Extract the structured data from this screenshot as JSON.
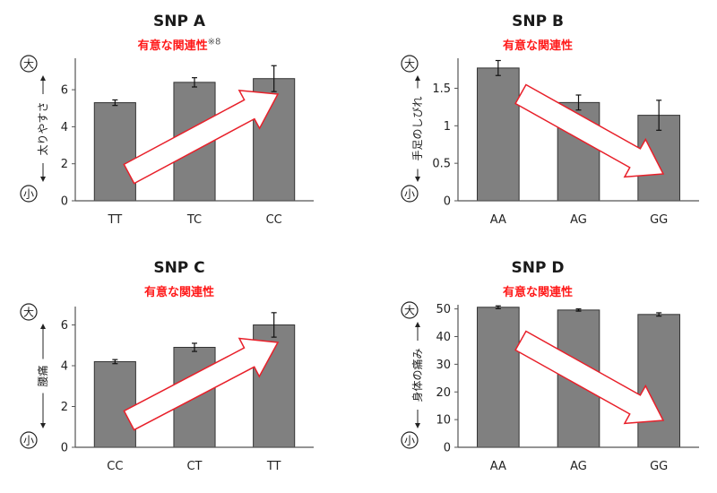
{
  "chart_data": [
    {
      "type": "bar",
      "title": "SNP A",
      "subtitle": "有意な関連性",
      "note": "※8",
      "ylabel": "太りやすさ",
      "y_top": "大",
      "y_bottom": "小",
      "categories": [
        "TT",
        "TC",
        "CC"
      ],
      "values": [
        5.3,
        6.4,
        6.6
      ],
      "errors": [
        0.15,
        0.25,
        0.7
      ],
      "yticks": [
        0,
        2,
        4,
        6
      ],
      "ylim": [
        0,
        7.7
      ],
      "trend": "up",
      "grid": false
    },
    {
      "type": "bar",
      "title": "SNP B",
      "subtitle": "有意な関連性",
      "ylabel": "手足のしびれ",
      "y_top": "大",
      "y_bottom": "小",
      "categories": [
        "AA",
        "AG",
        "GG"
      ],
      "values": [
        1.77,
        1.31,
        1.14
      ],
      "errors": [
        0.1,
        0.1,
        0.2
      ],
      "yticks": [
        0,
        0.5,
        1,
        1.5
      ],
      "ytick_labels": [
        "0",
        "0.5",
        "1",
        "1.5"
      ],
      "ylim": [
        0,
        1.9
      ],
      "trend": "down",
      "grid": false
    },
    {
      "type": "bar",
      "title": "SNP C",
      "subtitle": "有意な関連性",
      "ylabel": "腰痛",
      "y_top": "大",
      "y_bottom": "小",
      "categories": [
        "CC",
        "CT",
        "TT"
      ],
      "values": [
        4.2,
        4.9,
        6.0
      ],
      "errors": [
        0.1,
        0.2,
        0.6
      ],
      "yticks": [
        0,
        2,
        4,
        6
      ],
      "ylim": [
        0,
        6.9
      ],
      "trend": "up",
      "grid": false
    },
    {
      "type": "bar",
      "title": "SNP D",
      "subtitle": "有意な関連性",
      "ylabel": "身体の痛み",
      "y_top": "大",
      "y_bottom": "小",
      "categories": [
        "AA",
        "AG",
        "GG"
      ],
      "values": [
        50.6,
        49.6,
        48.0
      ],
      "errors": [
        0.5,
        0.4,
        0.6
      ],
      "yticks": [
        0,
        10,
        20,
        30,
        40,
        50
      ],
      "ylim": [
        0,
        51.5
      ],
      "trend": "down",
      "grid": false
    }
  ],
  "colors": {
    "bar": "#808080",
    "bar_edge": "#333333",
    "arrow_edge": "#e8202a",
    "subtitle": "#ff1a1a"
  }
}
